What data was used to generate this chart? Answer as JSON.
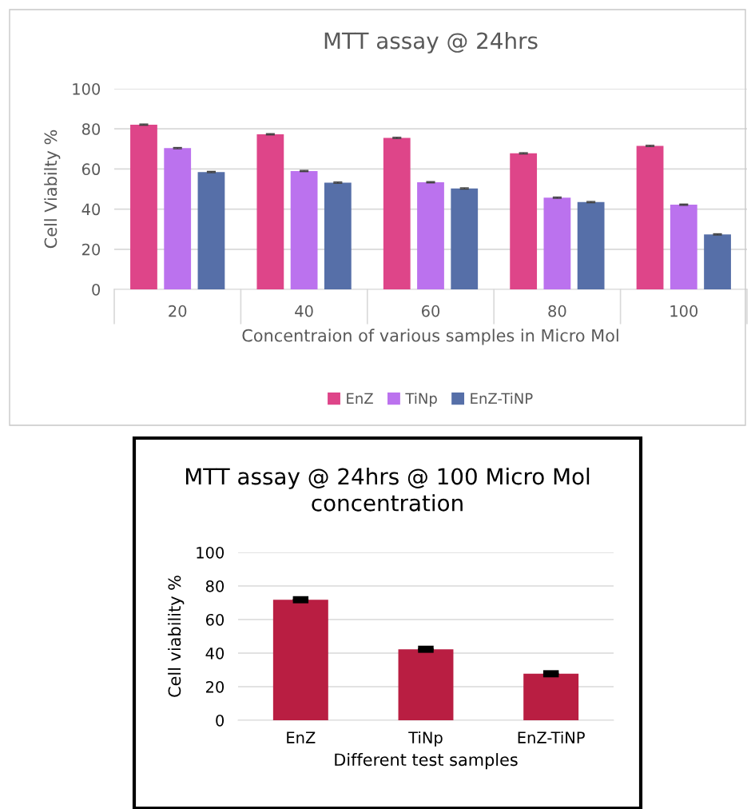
{
  "chart_data": [
    {
      "type": "bar",
      "title": "MTT assay @ 24hrs",
      "xlabel": "Concentraion of various samples in Micro Mol",
      "ylabel": "Cell Viabilty %",
      "categories": [
        "20",
        "40",
        "60",
        "80",
        "100"
      ],
      "series": [
        {
          "name": "EnZ",
          "color": "#de4589",
          "values": [
            82.1,
            77.3,
            75.5,
            67.8,
            71.5
          ],
          "errors": [
            0.3,
            0.3,
            0.3,
            0.3,
            0.3
          ]
        },
        {
          "name": "TiNp",
          "color": "#bb72ee",
          "values": [
            70.4,
            59.0,
            53.4,
            45.7,
            42.2
          ],
          "errors": [
            0.3,
            0.3,
            0.3,
            0.3,
            0.3
          ]
        },
        {
          "name": "EnZ-TiNP",
          "color": "#566fa8",
          "values": [
            58.5,
            53.2,
            50.3,
            43.5,
            27.4
          ],
          "errors": [
            0.3,
            0.3,
            0.3,
            0.3,
            0.3
          ]
        }
      ],
      "ylim": [
        0,
        100
      ],
      "yticks": [
        0,
        20,
        40,
        60,
        80,
        100
      ],
      "grid": "y",
      "legend": "bottom"
    },
    {
      "type": "bar",
      "title": "MTT assay @ 24hrs @ 100 Micro Mol concentration",
      "xlabel": "Different test samples",
      "ylabel": "Cell viability %",
      "categories": [
        "EnZ",
        "TiNp",
        "EnZ-TiNP"
      ],
      "values": [
        71.8,
        42.3,
        27.7
      ],
      "errors": [
        0.8,
        0.8,
        0.8
      ],
      "color": "#b91e42",
      "ylim": [
        0,
        100
      ],
      "yticks": [
        0,
        20,
        40,
        60,
        80,
        100
      ],
      "grid": "y",
      "legend": false
    }
  ]
}
